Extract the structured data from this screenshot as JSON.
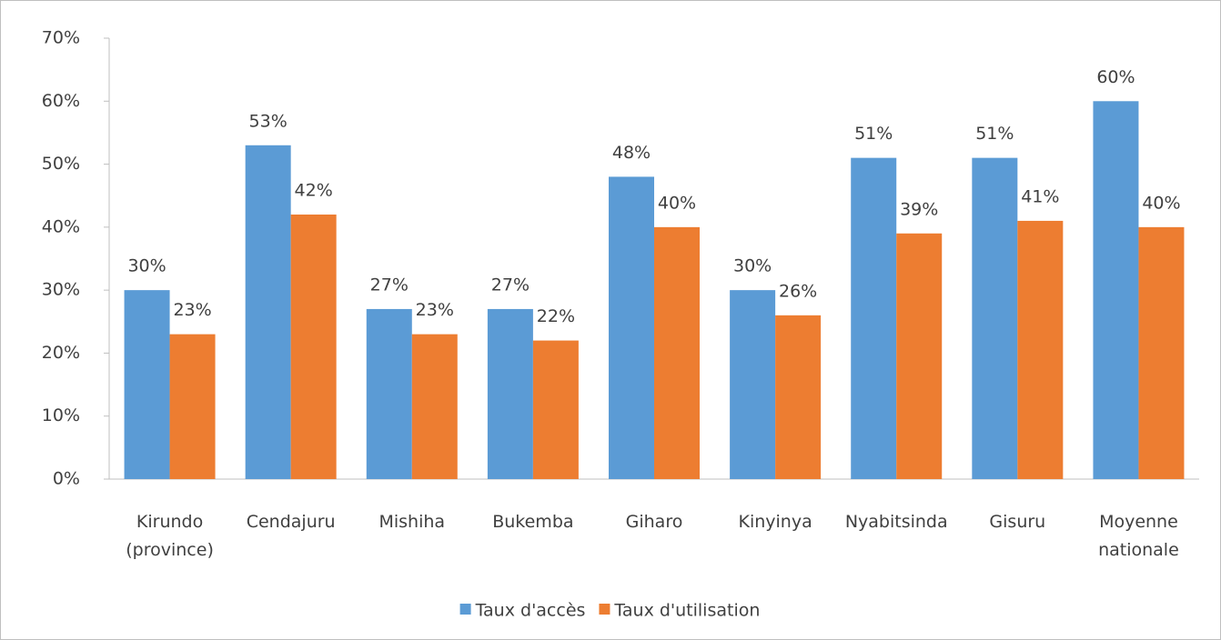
{
  "chart_data": {
    "type": "bar",
    "categories": [
      "Kirundo (province)",
      "Cendajuru",
      "Mishiha",
      "Bukemba",
      "Giharo",
      "Kinyinya",
      "Nyabitsinda",
      "Gisuru",
      "Moyenne nationale"
    ],
    "series": [
      {
        "name": "Taux d'accès",
        "color": "#5b9bd5",
        "values": [
          30,
          53,
          27,
          27,
          48,
          30,
          51,
          51,
          60
        ],
        "value_labels": [
          "30%",
          "53%",
          "27%",
          "27%",
          "48%",
          "30%",
          "51%",
          "51%",
          "60%"
        ]
      },
      {
        "name": "Taux d'utilisation",
        "color": "#ed7d31",
        "values": [
          23,
          42,
          23,
          22,
          40,
          26,
          39,
          41,
          40
        ],
        "value_labels": [
          "23%",
          "42%",
          "23%",
          "22%",
          "40%",
          "26%",
          "39%",
          "41%",
          "40%"
        ]
      }
    ],
    "ylim": [
      0,
      70
    ],
    "yticks": [
      {
        "value": 0,
        "label": "0%"
      },
      {
        "value": 10,
        "label": "10%"
      },
      {
        "value": 20,
        "label": "20%"
      },
      {
        "value": 30,
        "label": "30%"
      },
      {
        "value": 40,
        "label": "40%"
      },
      {
        "value": 50,
        "label": "50%"
      },
      {
        "value": 60,
        "label": "60%"
      },
      {
        "value": 70,
        "label": "70%"
      }
    ],
    "grid": false,
    "legend": "bottom"
  }
}
